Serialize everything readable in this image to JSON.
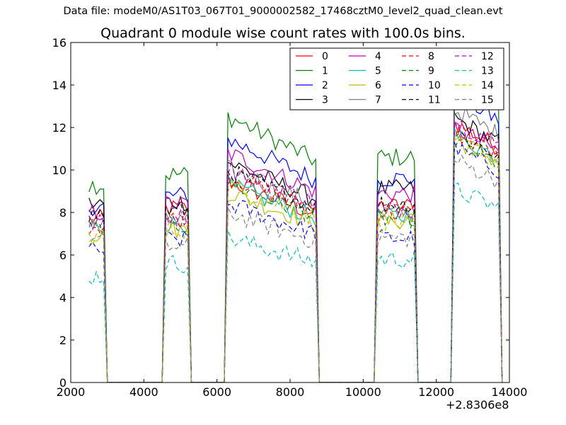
{
  "suptitle": "Data file: modeM0/AS1T03_067T01_9000002582_17468cztM0_level2_quad_clean.evt",
  "chart_data": {
    "type": "line",
    "title": "Quadrant 0 module wise count rates with 100.0s bins.",
    "xlabel": "",
    "ylabel": "",
    "x_offset_label": "+2.8306e8",
    "xlim": [
      2000,
      14000
    ],
    "ylim": [
      0,
      16
    ],
    "xticks": [
      2000,
      4000,
      6000,
      8000,
      10000,
      12000,
      14000
    ],
    "yticks": [
      0,
      2,
      4,
      6,
      8,
      10,
      12,
      14,
      16
    ],
    "grid": false,
    "legend_position": "top-right",
    "legend_columns": 4,
    "segments": [
      {
        "start": 2500,
        "end": 2900,
        "fall_end": 3000,
        "gap_end": 4500,
        "rise": 4500
      },
      {
        "start": 4600,
        "end": 5200,
        "fall_end": 5300,
        "gap_end": 6200,
        "rise": 6200
      },
      {
        "start": 6300,
        "end": 8700,
        "fall_end": 8800,
        "gap_end": 10300,
        "rise": 10300
      },
      {
        "start": 10400,
        "end": 11400,
        "fall_end": 11500,
        "gap_end": 12400,
        "rise": 12400
      },
      {
        "start": 12500,
        "end": 13700,
        "fall_end": 13800,
        "gap_end": null,
        "rise": null
      }
    ],
    "series": [
      {
        "name": "0",
        "color": "#ff0000",
        "dash": "solid",
        "levels": [
          7.7,
          8.2,
          8.8,
          8.3,
          11.3
        ]
      },
      {
        "name": "1",
        "color": "#008000",
        "dash": "solid",
        "levels": [
          9.3,
          9.8,
          11.6,
          10.6,
          13.3
        ]
      },
      {
        "name": "2",
        "color": "#0000ff",
        "dash": "solid",
        "levels": [
          8.3,
          8.8,
          10.6,
          9.6,
          12.6
        ]
      },
      {
        "name": "3",
        "color": "#000000",
        "dash": "solid",
        "levels": [
          8.4,
          8.5,
          9.6,
          9.1,
          11.5
        ]
      },
      {
        "name": "4",
        "color": "#bf00bf",
        "dash": "solid",
        "levels": [
          8.0,
          8.4,
          10.0,
          8.9,
          11.1
        ]
      },
      {
        "name": "5",
        "color": "#00bfbf",
        "dash": "solid",
        "levels": [
          7.3,
          7.5,
          8.6,
          7.8,
          10.8
        ]
      },
      {
        "name": "6",
        "color": "#bfbf00",
        "dash": "solid",
        "levels": [
          7.0,
          7.2,
          8.3,
          7.6,
          10.6
        ]
      },
      {
        "name": "7",
        "color": "#808080",
        "dash": "solid",
        "levels": [
          7.4,
          7.6,
          9.3,
          8.0,
          11.9
        ]
      },
      {
        "name": "8",
        "color": "#ff0000",
        "dash": "dashed",
        "levels": [
          7.4,
          7.7,
          9.0,
          8.0,
          10.9
        ]
      },
      {
        "name": "9",
        "color": "#008000",
        "dash": "dashed",
        "levels": [
          7.2,
          7.4,
          8.7,
          7.7,
          10.5
        ]
      },
      {
        "name": "10",
        "color": "#0000ff",
        "dash": "dashed",
        "levels": [
          6.2,
          6.7,
          7.8,
          6.8,
          10.2
        ]
      },
      {
        "name": "11",
        "color": "#000000",
        "dash": "dashed",
        "levels": [
          7.9,
          8.1,
          9.2,
          8.4,
          10.9
        ]
      },
      {
        "name": "12",
        "color": "#bf00bf",
        "dash": "dashed",
        "levels": [
          7.5,
          7.8,
          9.4,
          8.2,
          11.4
        ]
      },
      {
        "name": "13",
        "color": "#00bfbf",
        "dash": "dashed",
        "levels": [
          5.0,
          5.6,
          6.3,
          5.8,
          8.4
        ]
      },
      {
        "name": "14",
        "color": "#bfbf00",
        "dash": "dashed",
        "levels": [
          6.9,
          7.2,
          8.6,
          7.5,
          10.6
        ]
      },
      {
        "name": "15",
        "color": "#808080",
        "dash": "dashed",
        "levels": [
          6.7,
          6.4,
          7.4,
          6.8,
          9.7
        ]
      }
    ]
  }
}
